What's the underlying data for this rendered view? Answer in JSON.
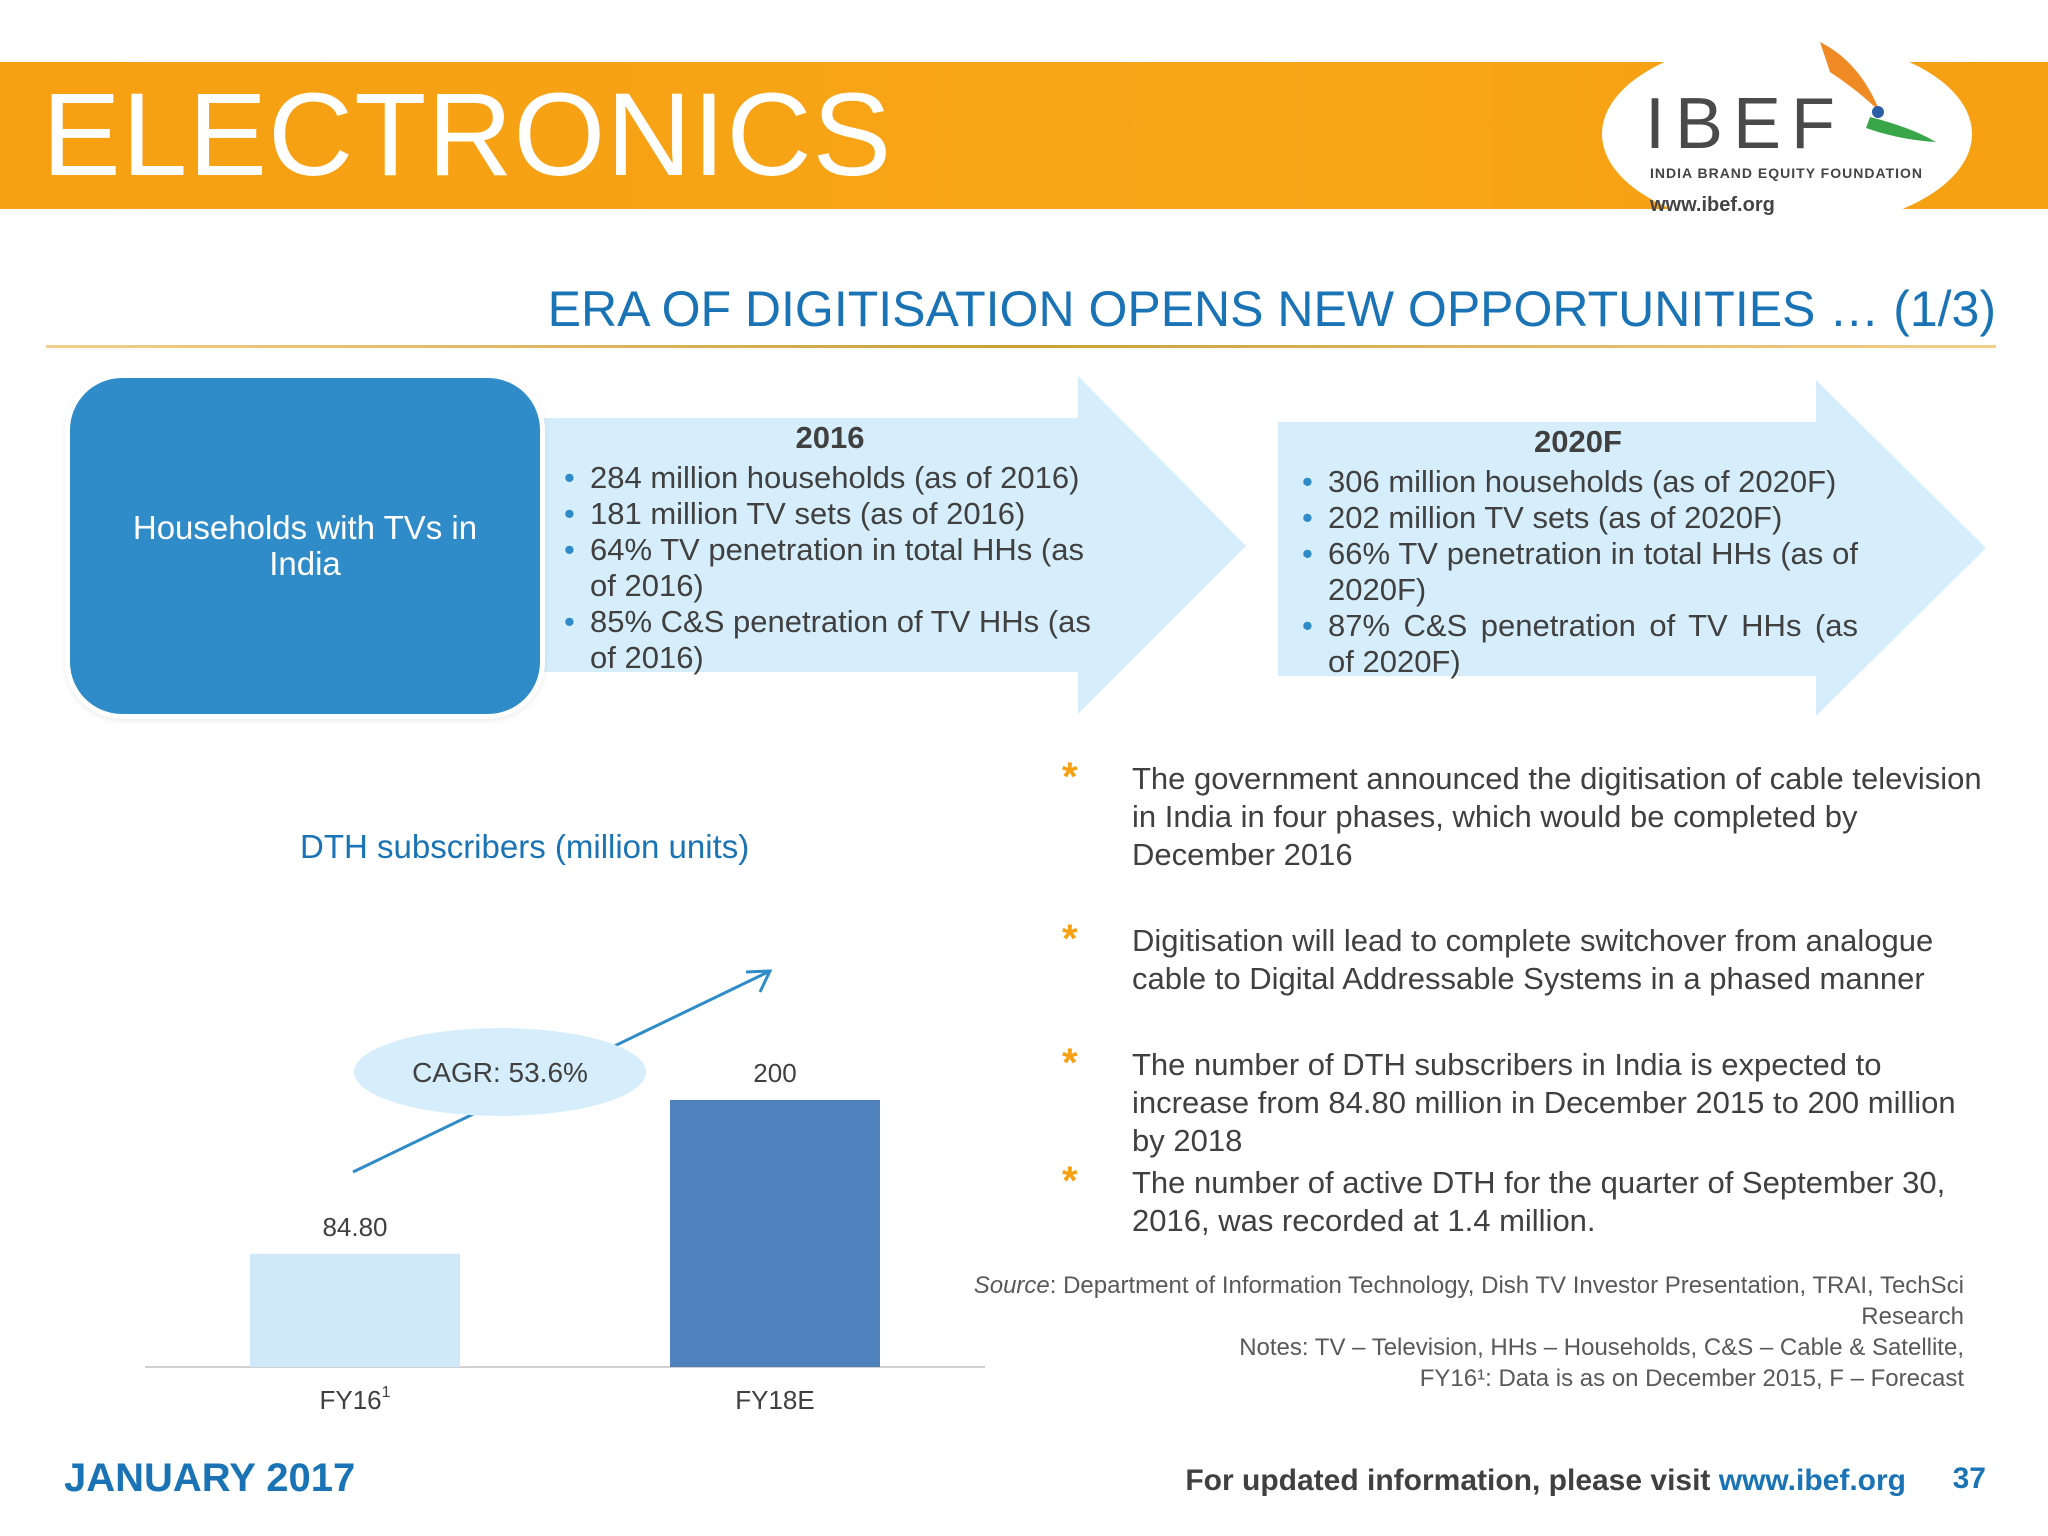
{
  "header": {
    "title": "ELECTRONICS",
    "logo_text": "IBEF",
    "logo_subtitle": "INDIA BRAND EQUITY FOUNDATION",
    "logo_url": "www.ibef.org"
  },
  "subtitle": "ERA OF DIGITISATION OPENS NEW OPPORTUNITIES … (1/3)",
  "households_box": "Households with TVs in India",
  "arrow_2016": {
    "heading": "2016",
    "items": [
      "284 million households (as of 2016)",
      "181 million TV sets (as of 2016)",
      "64% TV penetration in total HHs (as of 2016)",
      "85% C&S penetration of TV HHs (as of 2016)"
    ]
  },
  "arrow_2020": {
    "heading": "2020F",
    "items": [
      "306 million households (as of 2020F)",
      "202 million TV sets (as of 2020F)",
      "66% TV penetration in total HHs (as of 2020F)",
      "87% C&S penetration of TV HHs (as of 2020F)"
    ]
  },
  "chart_data": {
    "type": "bar",
    "title": "DTH subscribers (million units)",
    "categories": [
      "FY16",
      "FY18E"
    ],
    "category_superscripts": [
      "1",
      ""
    ],
    "values": [
      84.8,
      200
    ],
    "value_labels": [
      "84.80",
      "200"
    ],
    "bar_colors": [
      "#cfe9fa",
      "#4f81bd"
    ],
    "annotation": "CAGR: 53.6%",
    "ylim": [
      0,
      250
    ],
    "grid": false
  },
  "facts": [
    "The government announced the digitisation of cable television in India in four phases, which would be completed by December 2016",
    "Digitisation will lead to complete switchover from analogue cable to Digital Addressable Systems in a phased manner",
    "The number of DTH subscribers in India is expected to increase from 84.80 million in December 2015 to 200 million by 2018",
    "The number of active DTH for the quarter  of September 30, 2016, was recorded at 1.4 million."
  ],
  "source": {
    "label": "Source",
    "text": ": Department of Information Technology, Dish TV Investor Presentation, TRAI, TechSci Research",
    "notes_line1": "Notes: TV – Television, HHs – Households, C&S – Cable & Satellite,",
    "notes_line2": "FY16¹: Data is as on December 2015, F – Forecast"
  },
  "footer": {
    "date": "JANUARY 2017",
    "visit_text": "For updated information, please visit ",
    "visit_link": "www.ibef.org",
    "page_number": "37"
  },
  "colors": {
    "orange": "#f6a012",
    "blue_title": "#1a73b4",
    "box_blue": "#2f8cc8",
    "arrow_fill": "#d6eefb"
  }
}
